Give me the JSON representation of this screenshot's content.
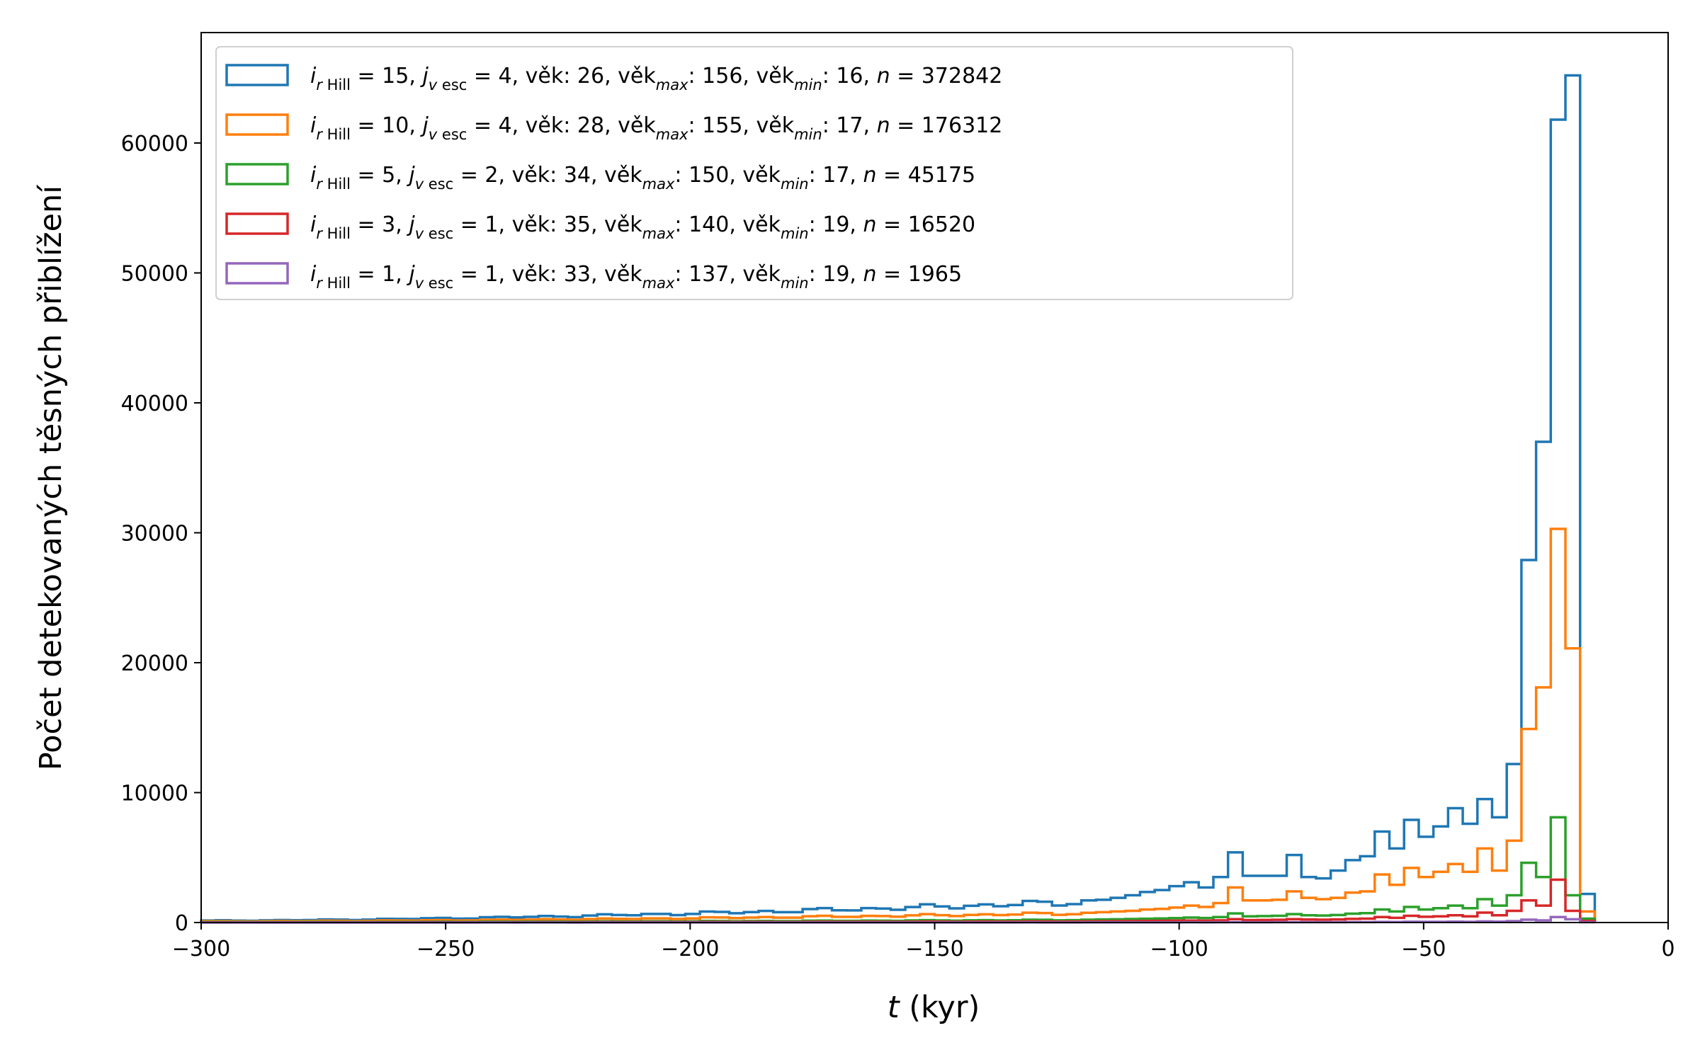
{
  "chart_data": {
    "type": "histogram-step",
    "xlabel_var": "t",
    "xlabel_unit": " (kyr)",
    "ylabel": "Počet detekovaných těsných přiblížení",
    "xlim": [
      -300,
      0
    ],
    "ylim": [
      0,
      68500
    ],
    "xticks": [
      -300,
      -250,
      -200,
      -150,
      -100,
      -50,
      0
    ],
    "xtick_labels": [
      "−300",
      "−250",
      "−200",
      "−150",
      "−100",
      "−50",
      "0"
    ],
    "yticks": [
      0,
      10000,
      20000,
      30000,
      40000,
      50000,
      60000
    ],
    "ytick_labels": [
      "0",
      "10000",
      "20000",
      "30000",
      "40000",
      "50000",
      "60000"
    ],
    "grid": false,
    "legend_position": "upper-left",
    "bin_width": 3,
    "series": [
      {
        "name": "i_rHill = 15, j_vesc = 4, věk: 26, věk_max: 156, věk_min: 16, n = 372842",
        "legend": {
          "i": "15",
          "j": "4",
          "vek": " 26",
          "vek_max": "156",
          "vek_min": "16",
          "n": "372842"
        },
        "color": "#1f77b4",
        "bins": [
          {
            "x0": -300,
            "x1": -120,
            "start": 150,
            "end": 1550
          },
          {
            "x0": -120,
            "y": 1700
          },
          {
            "x0": -117,
            "y": 1750
          },
          {
            "x0": -114,
            "y": 1900
          },
          {
            "x0": -111,
            "y": 2100
          },
          {
            "x0": -108,
            "y": 2350
          },
          {
            "x0": -105,
            "y": 2500
          },
          {
            "x0": -102,
            "y": 2800
          },
          {
            "x0": -99,
            "y": 3100
          },
          {
            "x0": -96,
            "y": 2700
          },
          {
            "x0": -93,
            "y": 3500
          },
          {
            "x0": -90,
            "y": 5400
          },
          {
            "x0": -87,
            "y": 3600
          },
          {
            "x0": -84,
            "y": 3600
          },
          {
            "x0": -81,
            "y": 3600
          },
          {
            "x0": -78,
            "y": 5200
          },
          {
            "x0": -75,
            "y": 3500
          },
          {
            "x0": -72,
            "y": 3400
          },
          {
            "x0": -69,
            "y": 4000
          },
          {
            "x0": -66,
            "y": 4800
          },
          {
            "x0": -63,
            "y": 5100
          },
          {
            "x0": -60,
            "y": 7000
          },
          {
            "x0": -57,
            "y": 5700
          },
          {
            "x0": -54,
            "y": 7900
          },
          {
            "x0": -51,
            "y": 6600
          },
          {
            "x0": -48,
            "y": 7400
          },
          {
            "x0": -45,
            "y": 8800
          },
          {
            "x0": -42,
            "y": 7600
          },
          {
            "x0": -39,
            "y": 9500
          },
          {
            "x0": -36,
            "y": 8100
          },
          {
            "x0": -33,
            "y": 12200
          },
          {
            "x0": -30,
            "y": 27900
          },
          {
            "x0": -27,
            "y": 37000
          },
          {
            "x0": -24,
            "y": 61800
          },
          {
            "x0": -21,
            "y": 65200
          },
          {
            "x0": -18,
            "y": 2200
          }
        ],
        "end_x": -15
      },
      {
        "name": "i_rHill = 10, j_vesc = 4, věk: 28, věk_max: 155, věk_min: 17, n = 176312",
        "legend": {
          "i": "10",
          "j": "4",
          "vek": " 28",
          "vek_max": "155",
          "vek_min": "17",
          "n": "176312"
        },
        "color": "#ff7f0e",
        "bins": [
          {
            "x0": -300,
            "x1": -120,
            "start": 100,
            "end": 700
          },
          {
            "x0": -120,
            "y": 750
          },
          {
            "x0": -117,
            "y": 800
          },
          {
            "x0": -114,
            "y": 850
          },
          {
            "x0": -111,
            "y": 900
          },
          {
            "x0": -108,
            "y": 1000
          },
          {
            "x0": -105,
            "y": 1050
          },
          {
            "x0": -102,
            "y": 1150
          },
          {
            "x0": -99,
            "y": 1300
          },
          {
            "x0": -96,
            "y": 1200
          },
          {
            "x0": -93,
            "y": 1500
          },
          {
            "x0": -90,
            "y": 2700
          },
          {
            "x0": -87,
            "y": 1700
          },
          {
            "x0": -84,
            "y": 1700
          },
          {
            "x0": -81,
            "y": 1750
          },
          {
            "x0": -78,
            "y": 2400
          },
          {
            "x0": -75,
            "y": 1900
          },
          {
            "x0": -72,
            "y": 1800
          },
          {
            "x0": -69,
            "y": 1900
          },
          {
            "x0": -66,
            "y": 2300
          },
          {
            "x0": -63,
            "y": 2400
          },
          {
            "x0": -60,
            "y": 3700
          },
          {
            "x0": -57,
            "y": 2900
          },
          {
            "x0": -54,
            "y": 4200
          },
          {
            "x0": -51,
            "y": 3500
          },
          {
            "x0": -48,
            "y": 3900
          },
          {
            "x0": -45,
            "y": 4500
          },
          {
            "x0": -42,
            "y": 3900
          },
          {
            "x0": -39,
            "y": 5700
          },
          {
            "x0": -36,
            "y": 4000
          },
          {
            "x0": -33,
            "y": 6300
          },
          {
            "x0": -30,
            "y": 14900
          },
          {
            "x0": -27,
            "y": 18100
          },
          {
            "x0": -24,
            "y": 30300
          },
          {
            "x0": -21,
            "y": 21100
          },
          {
            "x0": -18,
            "y": 850
          }
        ],
        "end_x": -15
      },
      {
        "name": "i_rHill = 5, j_vesc = 2, věk: 34, věk_max: 150, věk_min: 17, n = 45175",
        "legend": {
          "i": " 5",
          "j": "2",
          "vek": " 34",
          "vek_max": "150",
          "vek_min": "17",
          "n": "45175"
        },
        "color": "#2ca02c",
        "bins": [
          {
            "x0": -300,
            "x1": -120,
            "start": 40,
            "end": 200
          },
          {
            "x0": -120,
            "y": 220
          },
          {
            "x0": -117,
            "y": 240
          },
          {
            "x0": -114,
            "y": 250
          },
          {
            "x0": -111,
            "y": 270
          },
          {
            "x0": -108,
            "y": 290
          },
          {
            "x0": -105,
            "y": 310
          },
          {
            "x0": -102,
            "y": 340
          },
          {
            "x0": -99,
            "y": 380
          },
          {
            "x0": -96,
            "y": 350
          },
          {
            "x0": -93,
            "y": 420
          },
          {
            "x0": -90,
            "y": 700
          },
          {
            "x0": -87,
            "y": 480
          },
          {
            "x0": -84,
            "y": 500
          },
          {
            "x0": -81,
            "y": 520
          },
          {
            "x0": -78,
            "y": 650
          },
          {
            "x0": -75,
            "y": 560
          },
          {
            "x0": -72,
            "y": 540
          },
          {
            "x0": -69,
            "y": 580
          },
          {
            "x0": -66,
            "y": 680
          },
          {
            "x0": -63,
            "y": 720
          },
          {
            "x0": -60,
            "y": 1000
          },
          {
            "x0": -57,
            "y": 850
          },
          {
            "x0": -54,
            "y": 1200
          },
          {
            "x0": -51,
            "y": 1000
          },
          {
            "x0": -48,
            "y": 1100
          },
          {
            "x0": -45,
            "y": 1300
          },
          {
            "x0": -42,
            "y": 1100
          },
          {
            "x0": -39,
            "y": 1800
          },
          {
            "x0": -36,
            "y": 1300
          },
          {
            "x0": -33,
            "y": 2100
          },
          {
            "x0": -30,
            "y": 4600
          },
          {
            "x0": -27,
            "y": 3500
          },
          {
            "x0": -24,
            "y": 8100
          },
          {
            "x0": -21,
            "y": 2100
          },
          {
            "x0": -18,
            "y": 300
          }
        ],
        "end_x": -15
      },
      {
        "name": "i_rHill = 3, j_vesc = 1, věk: 35, věk_max: 140, věk_min: 19, n = 16520",
        "legend": {
          "i": " 3",
          "j": "1",
          "vek": " 35",
          "vek_max": "140",
          "vek_min": "19",
          "n": "16520"
        },
        "color": "#d62728",
        "bins": [
          {
            "x0": -300,
            "x1": -120,
            "start": 15,
            "end": 80
          },
          {
            "x0": -120,
            "y": 90
          },
          {
            "x0": -117,
            "y": 95
          },
          {
            "x0": -114,
            "y": 100
          },
          {
            "x0": -111,
            "y": 110
          },
          {
            "x0": -108,
            "y": 120
          },
          {
            "x0": -105,
            "y": 130
          },
          {
            "x0": -102,
            "y": 140
          },
          {
            "x0": -99,
            "y": 150
          },
          {
            "x0": -96,
            "y": 140
          },
          {
            "x0": -93,
            "y": 170
          },
          {
            "x0": -90,
            "y": 260
          },
          {
            "x0": -87,
            "y": 190
          },
          {
            "x0": -84,
            "y": 200
          },
          {
            "x0": -81,
            "y": 210
          },
          {
            "x0": -78,
            "y": 260
          },
          {
            "x0": -75,
            "y": 230
          },
          {
            "x0": -72,
            "y": 220
          },
          {
            "x0": -69,
            "y": 240
          },
          {
            "x0": -66,
            "y": 280
          },
          {
            "x0": -63,
            "y": 300
          },
          {
            "x0": -60,
            "y": 420
          },
          {
            "x0": -57,
            "y": 360
          },
          {
            "x0": -54,
            "y": 520
          },
          {
            "x0": -51,
            "y": 440
          },
          {
            "x0": -48,
            "y": 480
          },
          {
            "x0": -45,
            "y": 560
          },
          {
            "x0": -42,
            "y": 480
          },
          {
            "x0": -39,
            "y": 760
          },
          {
            "x0": -36,
            "y": 560
          },
          {
            "x0": -33,
            "y": 900
          },
          {
            "x0": -30,
            "y": 1700
          },
          {
            "x0": -27,
            "y": 1300
          },
          {
            "x0": -24,
            "y": 3300
          },
          {
            "x0": -21,
            "y": 900
          },
          {
            "x0": -18,
            "y": 120
          }
        ],
        "end_x": -15
      },
      {
        "name": "i_rHill = 1, j_vesc = 1, věk: 33, věk_max: 137, věk_min: 19, n = 1965",
        "legend": {
          "i": " 1",
          "j": "1",
          "vek": " 33",
          "vek_max": "137",
          "vek_min": "19",
          "n": "1965"
        },
        "color": "#9467bd",
        "bins": [
          {
            "x0": -300,
            "x1": -120,
            "start": 2,
            "end": 10
          },
          {
            "x0": -120,
            "y": 11
          },
          {
            "x0": -117,
            "y": 12
          },
          {
            "x0": -114,
            "y": 13
          },
          {
            "x0": -111,
            "y": 14
          },
          {
            "x0": -108,
            "y": 15
          },
          {
            "x0": -105,
            "y": 16
          },
          {
            "x0": -102,
            "y": 17
          },
          {
            "x0": -99,
            "y": 18
          },
          {
            "x0": -96,
            "y": 17
          },
          {
            "x0": -93,
            "y": 20
          },
          {
            "x0": -90,
            "y": 30
          },
          {
            "x0": -87,
            "y": 22
          },
          {
            "x0": -84,
            "y": 23
          },
          {
            "x0": -81,
            "y": 24
          },
          {
            "x0": -78,
            "y": 30
          },
          {
            "x0": -75,
            "y": 27
          },
          {
            "x0": -72,
            "y": 26
          },
          {
            "x0": -69,
            "y": 28
          },
          {
            "x0": -66,
            "y": 33
          },
          {
            "x0": -63,
            "y": 35
          },
          {
            "x0": -60,
            "y": 50
          },
          {
            "x0": -57,
            "y": 42
          },
          {
            "x0": -54,
            "y": 60
          },
          {
            "x0": -51,
            "y": 52
          },
          {
            "x0": -48,
            "y": 56
          },
          {
            "x0": -45,
            "y": 66
          },
          {
            "x0": -42,
            "y": 56
          },
          {
            "x0": -39,
            "y": 90
          },
          {
            "x0": -36,
            "y": 66
          },
          {
            "x0": -33,
            "y": 110
          },
          {
            "x0": -30,
            "y": 220
          },
          {
            "x0": -27,
            "y": 160
          },
          {
            "x0": -24,
            "y": 420
          },
          {
            "x0": -21,
            "y": 250
          },
          {
            "x0": -18,
            "y": 30
          }
        ],
        "end_x": -15
      }
    ]
  }
}
